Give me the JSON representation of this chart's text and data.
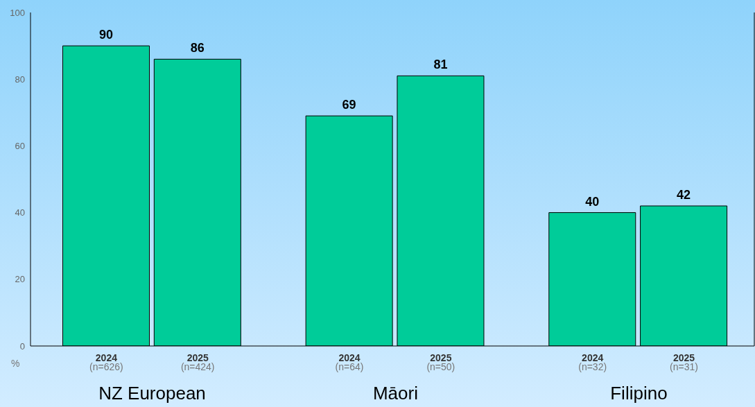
{
  "chart_data": {
    "type": "bar",
    "ylabel": "%",
    "categories": [
      "2024\n(n=626)",
      "2025\n(n=424)",
      "2024\n(n=64)",
      "2025\n(n=50)",
      "2024\n(n=32)",
      "2025\n(n=31)"
    ],
    "values": [
      90,
      86,
      69,
      81,
      40,
      42
    ],
    "color": "#00cc99",
    "ylim": [
      0,
      100
    ],
    "yticks": [
      0,
      20,
      40,
      60,
      80,
      100
    ],
    "data_labels": true,
    "annotations": [
      "NZ European",
      "Māori",
      "Filipino"
    ]
  }
}
